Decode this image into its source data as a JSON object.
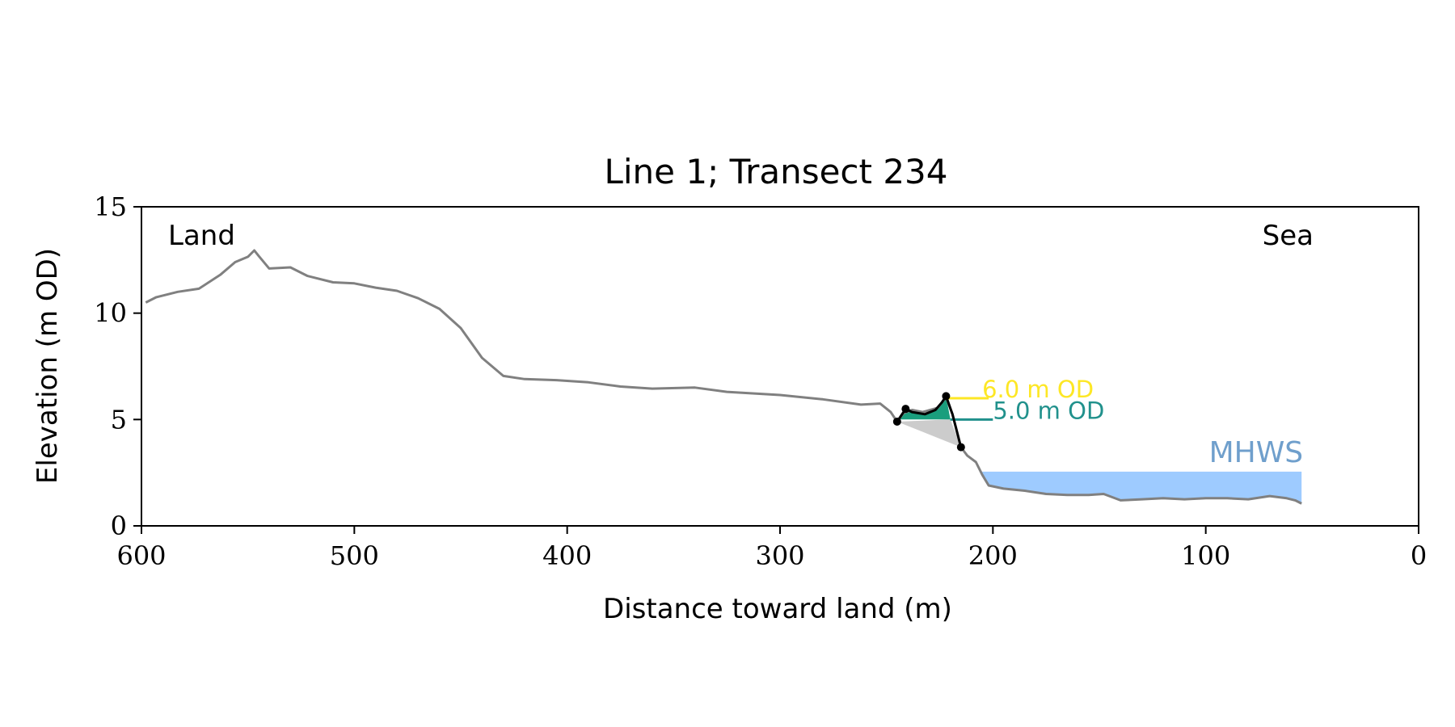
{
  "chart_data": {
    "type": "line",
    "title": "Line 1; Transect 234",
    "xlabel": "Distance toward land (m)",
    "ylabel": "Elevation (m OD)",
    "xlim": [
      600,
      0
    ],
    "ylim": [
      0,
      15
    ],
    "x_ticks": [
      600,
      500,
      400,
      300,
      200,
      100,
      0
    ],
    "x_tick_labels": [
      "600",
      "500",
      "400",
      "300",
      "200",
      "100",
      "0"
    ],
    "y_ticks": [
      0,
      5,
      10,
      15
    ],
    "y_tick_labels": [
      "0",
      "5",
      "10",
      "15"
    ],
    "grid": false,
    "side_labels": {
      "left": "Land",
      "right": "Sea"
    },
    "colors": {
      "profile": "#808080",
      "dune": "#000000",
      "fill_above_5m": "#1a9e7d",
      "fill_below": "#cccccc",
      "line_6m": "#fde725",
      "line_5m": "#21918c",
      "mhws_fill": "#9ecbff",
      "mhws_text": "#6f9fcc"
    },
    "profile": [
      [
        598,
        10.5
      ],
      [
        593,
        10.75
      ],
      [
        583,
        11.0
      ],
      [
        573,
        11.15
      ],
      [
        563,
        11.8
      ],
      [
        556,
        12.4
      ],
      [
        550,
        12.65
      ],
      [
        547,
        12.95
      ],
      [
        545,
        12.7
      ],
      [
        540,
        12.1
      ],
      [
        530,
        12.15
      ],
      [
        522,
        11.75
      ],
      [
        510,
        11.45
      ],
      [
        500,
        11.4
      ],
      [
        490,
        11.2
      ],
      [
        480,
        11.05
      ],
      [
        470,
        10.7
      ],
      [
        460,
        10.2
      ],
      [
        450,
        9.3
      ],
      [
        440,
        7.9
      ],
      [
        430,
        7.05
      ],
      [
        420,
        6.9
      ],
      [
        405,
        6.85
      ],
      [
        390,
        6.75
      ],
      [
        375,
        6.55
      ],
      [
        360,
        6.45
      ],
      [
        340,
        6.5
      ],
      [
        325,
        6.3
      ],
      [
        300,
        6.15
      ],
      [
        280,
        5.95
      ],
      [
        262,
        5.7
      ],
      [
        253,
        5.75
      ],
      [
        248,
        5.35
      ],
      [
        245,
        4.9
      ],
      [
        242,
        5.3
      ],
      [
        238,
        5.45
      ],
      [
        233,
        5.35
      ],
      [
        226,
        5.55
      ],
      [
        222,
        6.05
      ],
      [
        219,
        5.25
      ],
      [
        215,
        3.7
      ],
      [
        212,
        3.3
      ],
      [
        208,
        3.0
      ],
      [
        205,
        2.4
      ],
      [
        202,
        1.9
      ],
      [
        195,
        1.75
      ],
      [
        185,
        1.65
      ],
      [
        175,
        1.5
      ],
      [
        165,
        1.45
      ],
      [
        155,
        1.45
      ],
      [
        148,
        1.5
      ],
      [
        140,
        1.2
      ],
      [
        130,
        1.25
      ],
      [
        120,
        1.3
      ],
      [
        110,
        1.25
      ],
      [
        100,
        1.3
      ],
      [
        90,
        1.3
      ],
      [
        80,
        1.25
      ],
      [
        70,
        1.4
      ],
      [
        62,
        1.3
      ],
      [
        58,
        1.2
      ],
      [
        55,
        1.05
      ]
    ],
    "dune_outline": [
      [
        245,
        4.9
      ],
      [
        241,
        5.5
      ],
      [
        238,
        5.35
      ],
      [
        232,
        5.25
      ],
      [
        227,
        5.45
      ],
      [
        224,
        5.8
      ],
      [
        222,
        6.1
      ],
      [
        219,
        5.25
      ],
      [
        215,
        3.7
      ]
    ],
    "dune_markers": [
      [
        245,
        4.9
      ],
      [
        241,
        5.5
      ],
      [
        222,
        6.1
      ],
      [
        215,
        3.7
      ]
    ],
    "fill_above_5m": [
      [
        244,
        5.0
      ],
      [
        241,
        5.5
      ],
      [
        238,
        5.35
      ],
      [
        232,
        5.25
      ],
      [
        227,
        5.45
      ],
      [
        224,
        5.8
      ],
      [
        222,
        6.1
      ],
      [
        220,
        5.0
      ]
    ],
    "fill_below": [
      [
        245,
        4.9
      ],
      [
        220,
        5.0
      ],
      [
        215,
        3.7
      ]
    ],
    "reference_lines": [
      {
        "label": "6.0 m OD",
        "y": 6.0,
        "x": [
          222,
          202
        ]
      },
      {
        "label": "5.0 m OD",
        "y": 5.0,
        "x": [
          220,
          200
        ]
      }
    ],
    "mhws": {
      "label": "MHWS",
      "y": 2.55,
      "x": [
        205,
        55
      ]
    }
  }
}
